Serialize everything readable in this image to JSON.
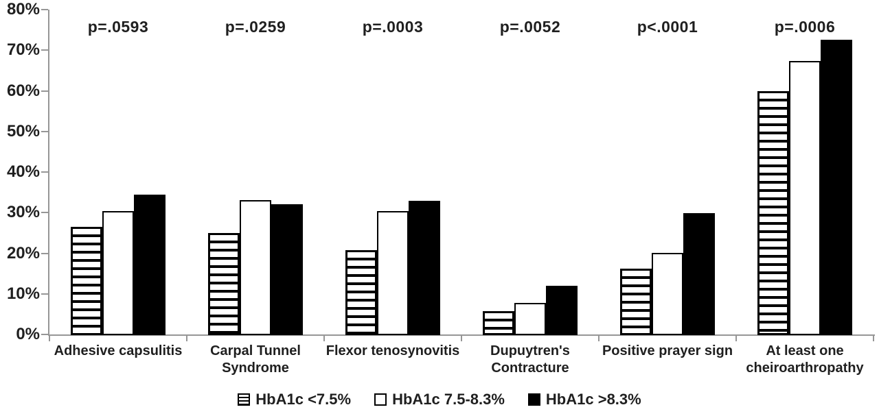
{
  "chart_data": {
    "type": "bar",
    "title": "",
    "xlabel": "",
    "ylabel": "",
    "ylim": [
      0,
      80
    ],
    "grid": false,
    "legend_position": "bottom",
    "y_axis": {
      "ticks": [
        "80%",
        "70%",
        "60%",
        "50%",
        "40%",
        "30%",
        "20%",
        "10%",
        "0%"
      ],
      "tick_values": [
        80,
        70,
        60,
        50,
        40,
        30,
        20,
        10,
        0
      ]
    },
    "categories": [
      {
        "label": "Adhesive capsulitis",
        "lines": [
          "Adhesive capsulitis"
        ],
        "p_value": "p=.0593"
      },
      {
        "label": "Carpal Tunnel Syndrome",
        "lines": [
          "Carpal Tunnel",
          "Syndrome"
        ],
        "p_value": "p=.0259"
      },
      {
        "label": "Flexor tenosynovitis",
        "lines": [
          "Flexor tenosynovitis"
        ],
        "p_value": "p=.0003"
      },
      {
        "label": "Dupuytren's Contracture",
        "lines": [
          "Dupuytren's",
          "Contracture"
        ],
        "p_value": "p=.0052"
      },
      {
        "label": "Positive prayer sign",
        "lines": [
          "Positive prayer sign"
        ],
        "p_value": "p<.0001"
      },
      {
        "label": "At least one cheiroarthropathy",
        "lines": [
          "At least one",
          "cheiroarthropathy"
        ],
        "p_value": "p=.0006"
      }
    ],
    "series": [
      {
        "name": "HbA1c <7.5%",
        "style": "striped",
        "marker_icon": "striped-square-icon",
        "values": [
          26.7,
          25.2,
          20.9,
          5.9,
          16.4,
          60.0
        ]
      },
      {
        "name": "HbA1c 7.5-8.3%",
        "style": "white",
        "marker_icon": "white-square-icon",
        "values": [
          30.6,
          33.3,
          30.5,
          8.0,
          20.2,
          67.5
        ]
      },
      {
        "name": "HbA1c >8.3%",
        "style": "black",
        "marker_icon": "black-square-icon",
        "values": [
          34.6,
          32.2,
          33.1,
          12.2,
          30.1,
          72.8
        ]
      }
    ],
    "colors": {
      "bar_fill_black": "#000000",
      "bar_fill_white": "#ffffff",
      "stripe_color": "#000000",
      "axis_color": "#969696",
      "text_color": "#1f1f1f",
      "background": "#ffffff"
    }
  }
}
